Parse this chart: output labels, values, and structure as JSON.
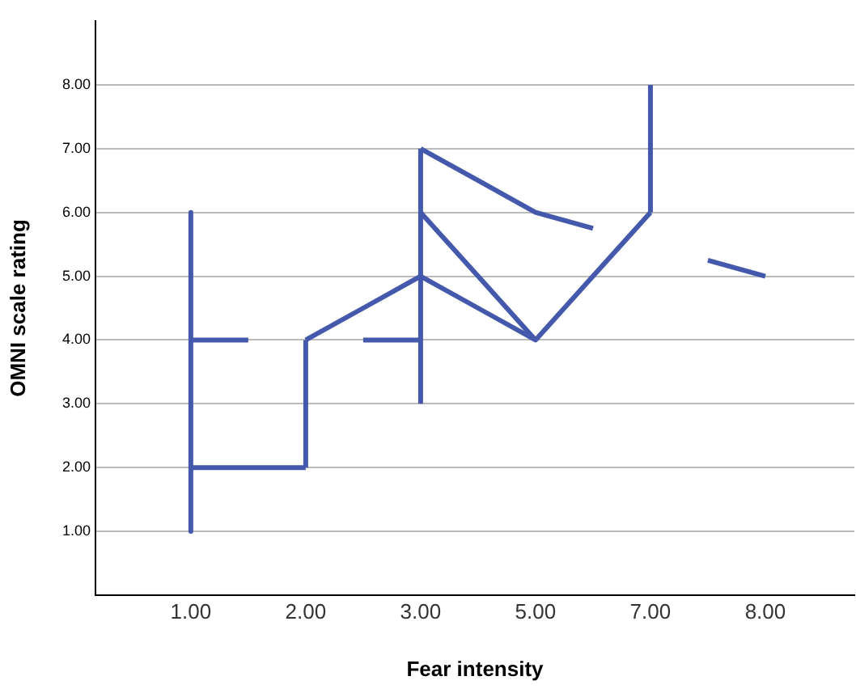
{
  "chart_data": {
    "type": "line",
    "xlabel": "Fear intensity",
    "ylabel": "OMNI scale rating",
    "categories": [
      "1.00",
      null,
      "2.00",
      null,
      "3.00",
      null,
      "5.00",
      null,
      "7.00",
      null,
      "8.00"
    ],
    "ylim": [
      0,
      9
    ],
    "yticks": [
      {
        "value": 1,
        "label": "1.00"
      },
      {
        "value": 2,
        "label": "2.00"
      },
      {
        "value": 3,
        "label": "3.00"
      },
      {
        "value": 4,
        "label": "4.00"
      },
      {
        "value": 5,
        "label": "5.00"
      },
      {
        "value": 6,
        "label": "6.00"
      },
      {
        "value": 7,
        "label": "7.00"
      },
      {
        "value": 8,
        "label": "8.00"
      }
    ],
    "grid": "y",
    "legend": false,
    "marker": "none",
    "line_style": "solid",
    "series": [
      {
        "color": "#4459ab",
        "x": [
          "1.00",
          "1.00"
        ],
        "values": [
          6,
          1
        ]
      },
      {
        "color": "#4459ab",
        "values": [
          4,
          4,
          null,
          null,
          null,
          null,
          null,
          null,
          null,
          null,
          null
        ]
      },
      {
        "color": "#4459ab",
        "values": [
          2,
          2,
          2,
          null,
          null,
          null,
          null,
          null,
          null,
          null,
          null
        ]
      },
      {
        "color": "#4459ab",
        "x": [
          "2.00",
          "2.00"
        ],
        "values": [
          2,
          4
        ]
      },
      {
        "color": "#4459ab",
        "values": [
          null,
          null,
          4,
          4.5,
          5,
          4.5,
          4,
          5,
          6,
          null,
          null
        ]
      },
      {
        "color": "#4459ab",
        "x": [
          "7.00",
          "7.00"
        ],
        "values": [
          6,
          8
        ]
      },
      {
        "color": "#4459ab",
        "values": [
          null,
          null,
          null,
          4,
          4,
          null,
          null,
          null,
          null,
          null,
          null
        ]
      },
      {
        "color": "#4459ab",
        "x": [
          "3.00",
          "3.00"
        ],
        "values": [
          3,
          7
        ]
      },
      {
        "color": "#4459ab",
        "values": [
          null,
          null,
          null,
          null,
          7,
          6.5,
          6,
          5.75,
          null,
          null,
          null
        ]
      },
      {
        "color": "#4459ab",
        "values": [
          null,
          null,
          null,
          null,
          6,
          5,
          4,
          null,
          null,
          null,
          null
        ]
      },
      {
        "color": "#4459ab",
        "values": [
          null,
          null,
          null,
          null,
          null,
          null,
          null,
          null,
          null,
          5.25,
          5
        ]
      }
    ]
  }
}
